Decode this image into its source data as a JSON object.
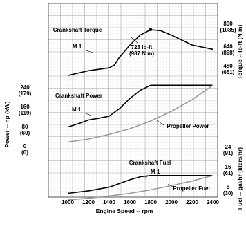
{
  "chart_data": {
    "type": "line",
    "xlabel": "Engine Speed -- rpm",
    "x_ticks": [
      "1000",
      "1200",
      "1400",
      "1600",
      "1800",
      "2000",
      "2200",
      "2400"
    ],
    "panels": {
      "torque": {
        "axis_label": "Torque -- lb-ft (N m)",
        "ticks": [
          {
            "v": 800,
            "top": "800",
            "bottom": "(1085)"
          },
          {
            "v": 640,
            "top": "640",
            "bottom": "(868)"
          },
          {
            "v": 480,
            "top": "480",
            "bottom": "(651)"
          }
        ],
        "series": [
          {
            "name": "Crankshaft Torque",
            "color": "#000000",
            "x": [
              1000,
              1200,
              1400,
              1450,
              1500,
              1600,
              1700,
              1800,
              1900,
              2000,
              2200,
              2400
            ],
            "y": [
              407,
              440,
              460,
              480,
              535,
              620,
              690,
              728,
              720,
              690,
              620,
              590
            ]
          }
        ],
        "labels": {
          "series": "Crankshaft Torque",
          "curve": "M 1",
          "peak_1": "728 lb-ft",
          "peak_2": "(987 N m)"
        },
        "peak": {
          "x": 1800,
          "y": 728
        }
      },
      "power": {
        "axis_label": "Power -- hp (kW)",
        "ticks": [
          {
            "v": 240,
            "top": "240",
            "bottom": "(179)"
          },
          {
            "v": 160,
            "top": "160",
            "bottom": "(119)"
          },
          {
            "v": 80,
            "top": "80",
            "bottom": "(60)"
          },
          {
            "v": 0,
            "top": "0",
            "bottom": "(0)"
          }
        ],
        "series": [
          {
            "name": "Crankshaft Power",
            "color": "#000000",
            "x": [
              1000,
              1100,
              1200,
              1300,
              1400,
              1500,
              1600,
              1700,
              1800,
              2000,
              2200,
              2400
            ],
            "y": [
              77,
              90,
              105,
              112,
              120,
              150,
              190,
              222,
              242,
              242,
              242,
              242
            ]
          },
          {
            "name": "Propeller Power",
            "color": "#9a9a9a",
            "x": [
              1000,
              1200,
              1400,
              1600,
              1800,
              2000,
              2200,
              2400
            ],
            "y": [
              18,
              30,
              48,
              71,
              101,
              139,
              185,
              242
            ]
          }
        ],
        "labels": {
          "crankshaft": "Crankshaft Power",
          "curve": "M 1",
          "propeller": "Propeller Power"
        }
      },
      "fuel": {
        "axis_label": "Fuel -- gal/hr (liters/hr)",
        "ticks": [
          {
            "v": 24,
            "top": "24",
            "bottom": "(91)"
          },
          {
            "v": 16,
            "top": "16",
            "bottom": "(61)"
          },
          {
            "v": 8,
            "top": "8",
            "bottom": "(30)"
          }
        ],
        "series": [
          {
            "name": "Crankshaft Fuel",
            "color": "#000000",
            "x": [
              1000,
              1200,
              1400,
              1500,
              1600,
              1700,
              1800,
              2000,
              2200,
              2400
            ],
            "y": [
              4.5,
              5.5,
              7.0,
              8.5,
              10.0,
              11.2,
              11.7,
              11.7,
              11.7,
              11.7
            ]
          },
          {
            "name": "Propeller Fuel",
            "color": "#9a9a9a",
            "x": [
              1000,
              1200,
              1400,
              1600,
              1800,
              2000,
              2200,
              2400
            ],
            "y": [
              1.8,
              2.5,
              3.4,
              4.5,
              5.9,
              7.6,
              9.5,
              11.7
            ]
          }
        ],
        "labels": {
          "crankshaft": "Crankshaft Fuel",
          "curve": "M 1",
          "propeller": "Propeller Fuel"
        }
      }
    }
  }
}
